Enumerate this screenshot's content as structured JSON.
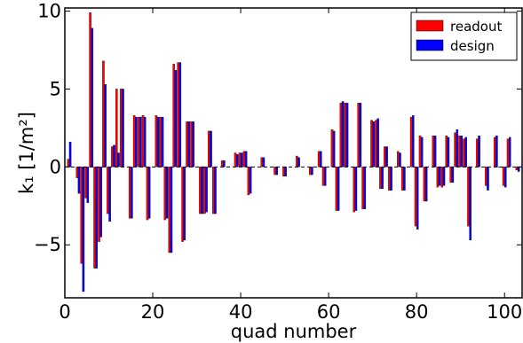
{
  "chart_data": {
    "type": "bar",
    "xlabel": "quad number",
    "ylabel": "k₁  [1/m²]",
    "xlim": [
      0,
      104
    ],
    "ylim": [
      -8.4,
      10.2
    ],
    "xticks": [
      "0",
      "20",
      "40",
      "60",
      "80",
      "100"
    ],
    "yticks": [
      "−5",
      "0",
      "5",
      "10"
    ],
    "legend_position": "top-right",
    "series": [
      {
        "name": "readout",
        "color": "#ff0000",
        "x": [
          1,
          3,
          4,
          5,
          6,
          7,
          8,
          9,
          10,
          11,
          12,
          13,
          15,
          16,
          17,
          18,
          19,
          21,
          22,
          23,
          24,
          25,
          26,
          27,
          28,
          29,
          31,
          32,
          33,
          34,
          36,
          39,
          40,
          41,
          42,
          45,
          48,
          50,
          53,
          56,
          58,
          59,
          61,
          62,
          63,
          64,
          66,
          67,
          68,
          70,
          71,
          72,
          73,
          74,
          76,
          77,
          79,
          80,
          81,
          82,
          84,
          85,
          86,
          87,
          88,
          89,
          90,
          91,
          92,
          94,
          96,
          98,
          99,
          100,
          101,
          103
        ],
        "values": [
          0.5,
          -0.7,
          -6.2,
          -2.0,
          9.9,
          -6.5,
          -4.8,
          6.8,
          -3.0,
          1.3,
          5.0,
          5.0,
          -3.3,
          3.3,
          3.2,
          3.3,
          -3.4,
          3.3,
          3.2,
          -3.4,
          -5.5,
          6.6,
          6.7,
          -4.8,
          2.9,
          2.9,
          -3.0,
          -3.0,
          2.3,
          -3.0,
          0.4,
          0.9,
          0.9,
          1.0,
          -1.8,
          0.6,
          -0.5,
          -0.6,
          0.7,
          -0.5,
          1.0,
          -1.2,
          2.4,
          -2.8,
          4.1,
          4.1,
          -2.9,
          4.1,
          -2.7,
          3.0,
          3.0,
          -1.4,
          1.3,
          -1.5,
          1.0,
          -1.5,
          3.2,
          -3.8,
          2.0,
          -2.2,
          2.0,
          -1.3,
          -1.3,
          2.0,
          -1.0,
          2.2,
          2.0,
          1.8,
          -3.8,
          1.8,
          -1.2,
          1.9,
          0.0,
          -1.2,
          1.8,
          -0.2
        ]
      },
      {
        "name": "design",
        "color": "#0000ff",
        "x": [
          1,
          3,
          4,
          5,
          6,
          7,
          8,
          9,
          10,
          11,
          12,
          13,
          15,
          16,
          17,
          18,
          19,
          21,
          22,
          23,
          24,
          25,
          26,
          27,
          28,
          29,
          31,
          32,
          33,
          34,
          36,
          39,
          40,
          41,
          42,
          45,
          48,
          50,
          53,
          56,
          58,
          59,
          61,
          62,
          63,
          64,
          66,
          67,
          68,
          70,
          71,
          72,
          73,
          74,
          76,
          77,
          79,
          80,
          81,
          82,
          84,
          85,
          86,
          87,
          88,
          89,
          90,
          91,
          92,
          94,
          96,
          98,
          99,
          100,
          101,
          103
        ],
        "values": [
          1.6,
          -1.7,
          -8.0,
          -2.3,
          8.9,
          -6.5,
          -4.5,
          5.3,
          -3.5,
          1.4,
          0.9,
          5.0,
          -3.3,
          3.2,
          3.2,
          3.2,
          -3.3,
          3.2,
          3.2,
          -3.3,
          -5.5,
          6.2,
          6.7,
          -4.7,
          2.9,
          2.9,
          -3.0,
          -2.9,
          2.3,
          -3.0,
          0.4,
          0.8,
          0.9,
          1.0,
          -1.7,
          0.6,
          -0.5,
          -0.6,
          0.6,
          -0.5,
          1.0,
          -1.2,
          2.3,
          -2.8,
          4.2,
          4.1,
          -2.8,
          4.1,
          -2.7,
          2.9,
          3.1,
          -1.4,
          1.3,
          -1.5,
          0.9,
          -1.5,
          3.3,
          -4.0,
          1.9,
          -2.2,
          2.0,
          -1.2,
          -1.2,
          1.9,
          -1.0,
          2.4,
          2.0,
          1.9,
          -4.7,
          2.0,
          -1.5,
          2.0,
          0.0,
          -1.3,
          1.9,
          -0.3
        ]
      }
    ]
  }
}
